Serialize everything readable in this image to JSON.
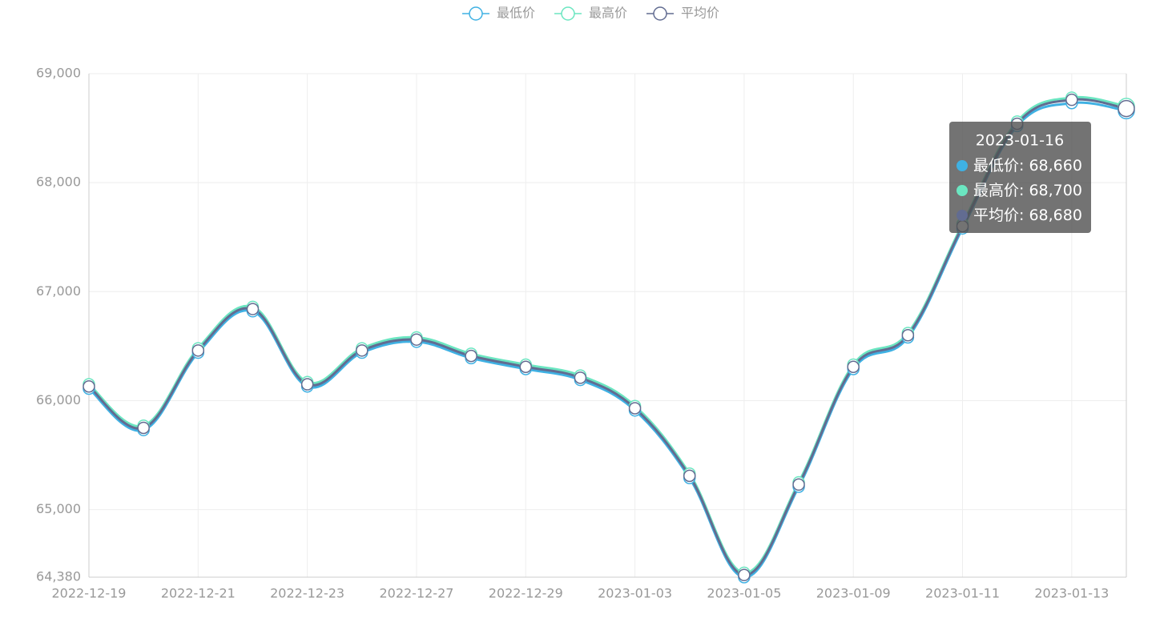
{
  "chart_data": {
    "type": "line",
    "categories": [
      "2022-12-19",
      null,
      "2022-12-21",
      null,
      "2022-12-23",
      null,
      "2022-12-27",
      null,
      "2022-12-29",
      null,
      "2023-01-03",
      null,
      "2023-01-05",
      null,
      "2023-01-09",
      null,
      "2023-01-11",
      null,
      "2023-01-13",
      "2023-01-16"
    ],
    "series": [
      {
        "name": "最低价",
        "color": "#3fb1e3",
        "values": [
          66110,
          65730,
          66440,
          66820,
          66130,
          66440,
          66540,
          66390,
          66290,
          66190,
          65910,
          65290,
          64380,
          65210,
          66290,
          66580,
          67580,
          68520,
          68730,
          68660
        ]
      },
      {
        "name": "最高价",
        "color": "#6be6c1",
        "values": [
          66150,
          65770,
          66480,
          66860,
          66170,
          66480,
          66580,
          66430,
          66330,
          66230,
          65950,
          65330,
          64420,
          65250,
          66330,
          66620,
          67620,
          68560,
          68780,
          68700
        ]
      },
      {
        "name": "平均价",
        "color": "#626c91",
        "values": [
          66130,
          65750,
          66460,
          66840,
          66150,
          66460,
          66560,
          66410,
          66310,
          66210,
          65930,
          65310,
          64400,
          65230,
          66310,
          66600,
          67600,
          68540,
          68760,
          68680
        ]
      }
    ],
    "ylim": [
      64380,
      69000
    ],
    "yticks": [
      {
        "value": 64380,
        "label": "64,380"
      },
      {
        "value": 65000,
        "label": "65,000"
      },
      {
        "value": 66000,
        "label": "66,000"
      },
      {
        "value": 67000,
        "label": "67,000"
      },
      {
        "value": 68000,
        "label": "68,000"
      },
      {
        "value": 69000,
        "label": "69,000"
      }
    ],
    "grid": true,
    "tooltip": {
      "value_labels": [
        "68,660",
        "68,700",
        "68,680"
      ]
    }
  }
}
